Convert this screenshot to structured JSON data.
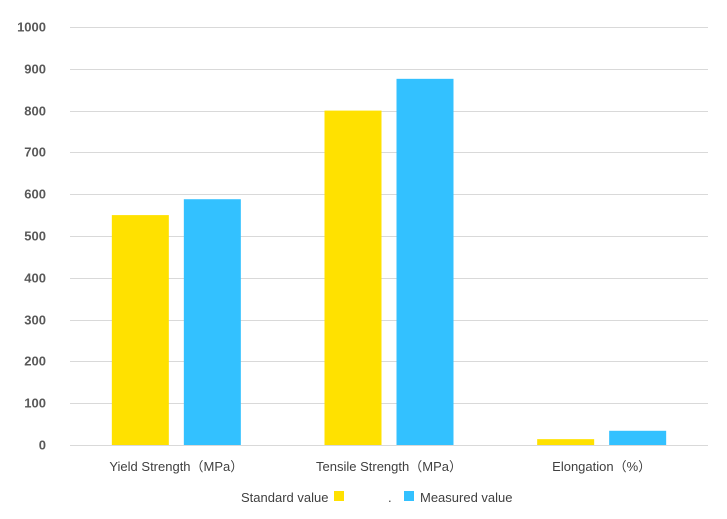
{
  "chart_data": {
    "type": "bar",
    "categories": [
      "Yield Strength（MPa）",
      "Tensile Strength（MPa）",
      "Elongation（%）"
    ],
    "series": [
      {
        "name": "Standard value",
        "values": [
          550,
          800,
          14
        ],
        "color": "#FFE100"
      },
      {
        "name": "Measured value",
        "values": [
          588,
          876,
          34
        ],
        "color": "#33C1FF"
      }
    ],
    "ylim": [
      0,
      1000
    ],
    "yticks": [
      "0",
      "100",
      "200",
      "300",
      "400",
      "500",
      "600",
      "700",
      "800",
      "900",
      "1000"
    ],
    "grid": true,
    "legend_position": "bottom",
    "legend_separator": "."
  }
}
